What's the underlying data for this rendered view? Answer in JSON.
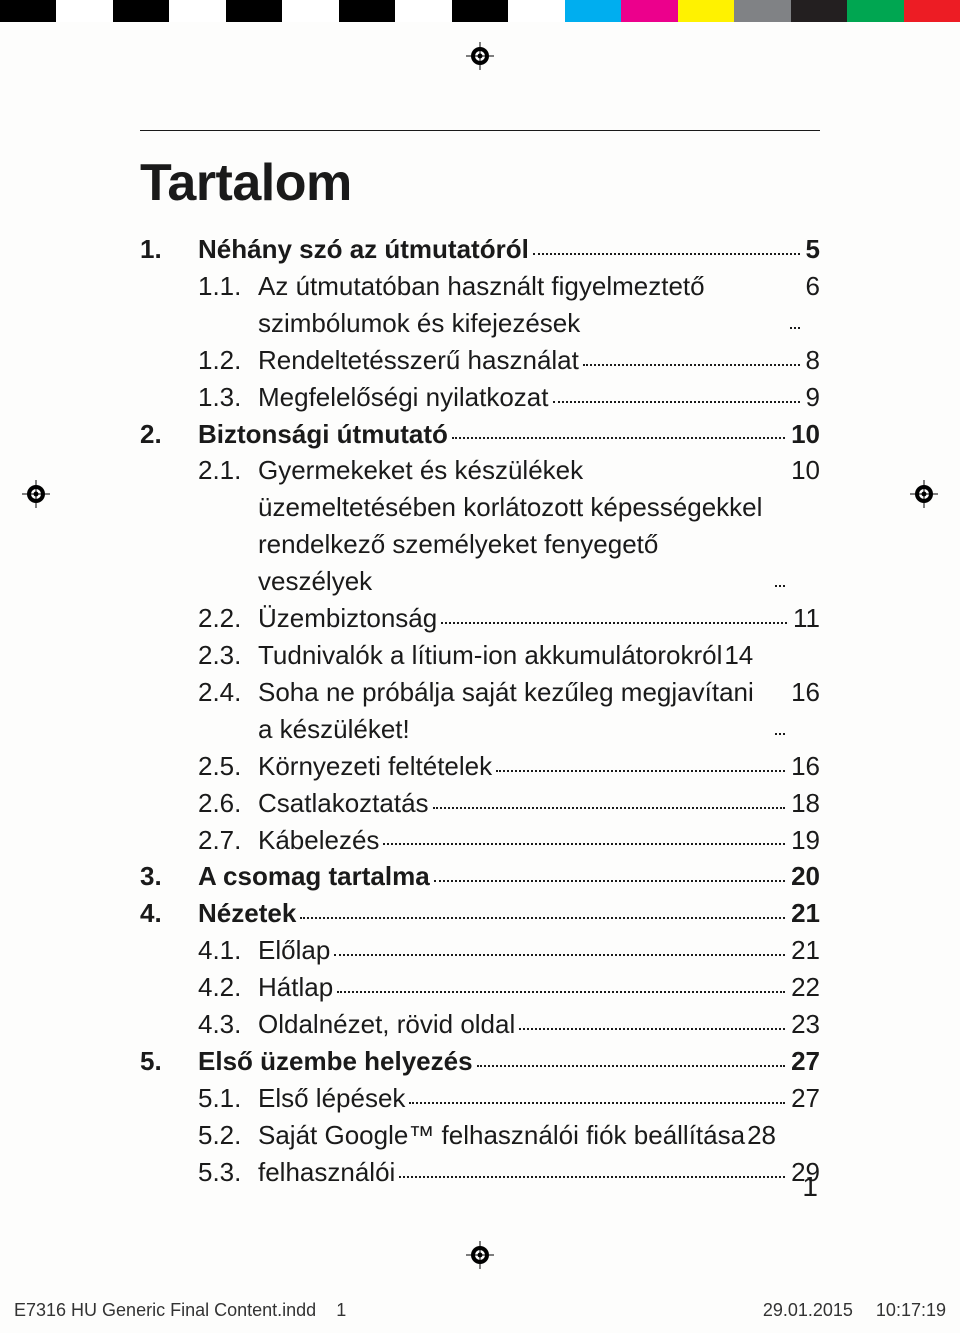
{
  "colorbar": [
    "#000000",
    "#ffffff",
    "#000000",
    "#ffffff",
    "#000000",
    "#ffffff",
    "#000000",
    "#ffffff",
    "#000000",
    "#ffffff",
    "#00aeef",
    "#ec008c",
    "#fff200",
    "#808285",
    "#231f20",
    "#00a651",
    "#ed1c24"
  ],
  "title": "Tartalom",
  "toc": [
    {
      "level": 0,
      "num": "1.",
      "label": "Néhány szó az útmutatóról",
      "page": "5"
    },
    {
      "level": 1,
      "num": "1.1.",
      "label": "Az útmutatóban használt figyelmeztető szimbólumok és kifejezések",
      "page": "6"
    },
    {
      "level": 1,
      "num": "1.2.",
      "label": "Rendeltetésszerű használat",
      "page": "8"
    },
    {
      "level": 1,
      "num": "1.3.",
      "label": "Megfelelőségi nyilatkozat",
      "page": "9"
    },
    {
      "level": 0,
      "num": "2.",
      "label": "Biztonsági útmutató",
      "page": "10"
    },
    {
      "level": 1,
      "num": "2.1.",
      "label": "Gyermekeket és készülékek üzemeltetésében korlátozott képességekkel rendelkező személyeket fenyegető veszélyek",
      "page": "10"
    },
    {
      "level": 1,
      "num": "2.2.",
      "label": "Üzembiztonság",
      "page": "11"
    },
    {
      "level": 1,
      "num": "2.3.",
      "label": "Tudnivalók a lítium-ion akkumulátorokról",
      "page": "14",
      "noleader": true
    },
    {
      "level": 1,
      "num": "2.4.",
      "label": "Soha ne próbálja saját kezűleg megjavítani a készüléket!",
      "page": "16"
    },
    {
      "level": 1,
      "num": "2.5.",
      "label": "Környezeti feltételek",
      "page": "16"
    },
    {
      "level": 1,
      "num": "2.6.",
      "label": "Csatlakoztatás",
      "page": "18"
    },
    {
      "level": 1,
      "num": "2.7.",
      "label": "Kábelezés",
      "page": "19"
    },
    {
      "level": 0,
      "num": "3.",
      "label": "A csomag tartalma",
      "page": "20"
    },
    {
      "level": 0,
      "num": "4.",
      "label": "Nézetek",
      "page": "21"
    },
    {
      "level": 1,
      "num": "4.1.",
      "label": "Előlap",
      "page": "21"
    },
    {
      "level": 1,
      "num": "4.2.",
      "label": "Hátlap",
      "page": "22"
    },
    {
      "level": 1,
      "num": "4.3.",
      "label": "Oldalnézet, rövid oldal",
      "page": "23"
    },
    {
      "level": 0,
      "num": "5.",
      "label": "Első üzembe helyezés",
      "page": "27"
    },
    {
      "level": 1,
      "num": "5.1.",
      "label": "Első lépések",
      "page": "27"
    },
    {
      "level": 1,
      "num": "5.2.",
      "label": "Saját Google™ felhasználói fiók beállítása",
      "page": "28",
      "noleader": true
    },
    {
      "level": 1,
      "num": "5.3.",
      "label": "felhasználói",
      "page": "29"
    }
  ],
  "page_number": "1",
  "footer": {
    "file": "E7316 HU Generic Final Content.indd",
    "seq": "1",
    "date": "29.01.2015",
    "time": "10:17:19"
  }
}
